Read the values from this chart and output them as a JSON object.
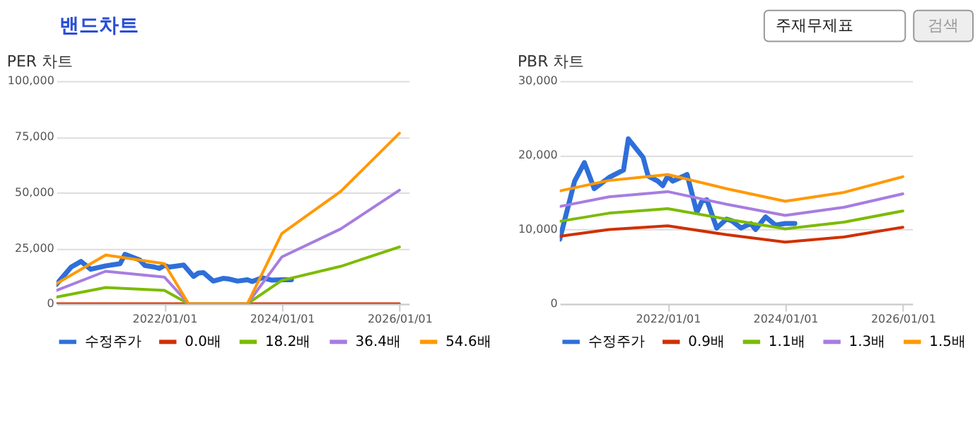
{
  "chart_data": [
    {
      "type": "other",
      "title": "밴드차트",
      "annotations": [
        "주재무제표",
        "검색"
      ]
    },
    {
      "type": "line",
      "title": "PER 차트",
      "legend": "bottom",
      "grid": "y",
      "marker": "none",
      "line_style": "solid",
      "xlim": [
        "2020-03-01",
        "2026-03-01"
      ],
      "xticks": [
        {
          "value": "2022-01-01",
          "label": "2022/01/01"
        },
        {
          "value": "2024-01-01",
          "label": "2024/01/01"
        },
        {
          "value": "2026-01-01",
          "label": "2026/01/01"
        }
      ],
      "ylim": [
        0,
        100000
      ],
      "yticks": [
        0,
        {
          "value": 25000,
          "label": "25,000"
        },
        {
          "value": 50000,
          "label": "50,000"
        },
        {
          "value": 75000,
          "label": "75,000"
        },
        {
          "value": 100000,
          "label": "100,000"
        }
      ],
      "series": [
        {
          "name": "수정주가",
          "color": "#2e6fd9",
          "x": [
            "2020-03-01",
            "2020-06-01",
            "2020-08-01",
            "2020-10-01",
            "2021-01-01",
            "2021-04-01",
            "2021-05-01",
            "2021-08-01",
            "2021-09-01",
            "2021-11-01",
            "2021-12-01",
            "2022-01-01",
            "2022-02-01",
            "2022-05-01",
            "2022-07-01",
            "2022-08-01",
            "2022-09-01",
            "2022-11-01",
            "2023-01-01",
            "2023-02-01",
            "2023-04-01",
            "2023-06-01",
            "2023-07-01",
            "2023-09-01",
            "2023-11-01",
            "2024-01-01",
            "2024-03-01"
          ],
          "values": [
            8700,
            16500,
            19000,
            15500,
            17000,
            18000,
            22200,
            19700,
            17200,
            16500,
            15900,
            17200,
            16500,
            17400,
            12300,
            13800,
            14000,
            10200,
            11400,
            11200,
            10200,
            10800,
            10000,
            11700,
            10600,
            10800,
            10800
          ]
        },
        {
          "name": "0.0배",
          "color": "#d03000",
          "x": [
            "2020-03-01",
            "2021-01-01",
            "2022-01-01",
            "2022-06-01",
            "2023-06-01",
            "2024-01-01",
            "2025-01-01",
            "2026-01-01"
          ],
          "values": [
            0,
            0,
            0,
            0,
            0,
            0,
            0,
            0
          ]
        },
        {
          "name": "18.2배",
          "color": "#7cbb00",
          "x": [
            "2020-03-01",
            "2021-01-01",
            "2022-01-01",
            "2022-06-01",
            "2023-06-01",
            "2024-01-01",
            "2025-01-01",
            "2026-01-01"
          ],
          "values": [
            3000,
            7300,
            6000,
            0,
            0,
            10500,
            16800,
            25500
          ]
        },
        {
          "name": "36.4배",
          "color": "#a77de0",
          "x": [
            "2020-03-01",
            "2021-01-01",
            "2022-01-01",
            "2022-06-01",
            "2023-06-01",
            "2024-01-01",
            "2025-01-01",
            "2026-01-01"
          ],
          "values": [
            6000,
            14600,
            12000,
            0,
            0,
            21000,
            33600,
            51000
          ]
        },
        {
          "name": "54.6배",
          "color": "#ff9900",
          "x": [
            "2020-03-01",
            "2021-01-01",
            "2022-01-01",
            "2022-06-01",
            "2023-06-01",
            "2024-01-01",
            "2025-01-01",
            "2026-01-01"
          ],
          "values": [
            9000,
            21900,
            18000,
            0,
            0,
            31500,
            50400,
            76500
          ]
        }
      ]
    },
    {
      "type": "line",
      "title": "PBR 차트",
      "legend": "bottom",
      "grid": "y",
      "marker": "none",
      "line_style": "solid",
      "xlim": [
        "2020-03-01",
        "2026-03-01"
      ],
      "xticks": [
        {
          "value": "2022-01-01",
          "label": "2022/01/01"
        },
        {
          "value": "2024-01-01",
          "label": "2024/01/01"
        },
        {
          "value": "2026-01-01",
          "label": "2026/01/01"
        }
      ],
      "ylim": [
        0,
        30000
      ],
      "yticks": [
        0,
        {
          "value": 10000,
          "label": "10,000"
        },
        {
          "value": 20000,
          "label": "20,000"
        },
        {
          "value": 30000,
          "label": "30,000"
        }
      ],
      "series": [
        {
          "name": "수정주가",
          "color": "#2e6fd9",
          "x": [
            "2020-03-01",
            "2020-06-01",
            "2020-08-01",
            "2020-10-01",
            "2021-01-01",
            "2021-04-01",
            "2021-05-01",
            "2021-08-01",
            "2021-09-01",
            "2021-11-01",
            "2021-12-01",
            "2022-01-01",
            "2022-02-01",
            "2022-05-01",
            "2022-07-01",
            "2022-08-01",
            "2022-09-01",
            "2022-11-01",
            "2023-01-01",
            "2023-02-01",
            "2023-04-01",
            "2023-06-01",
            "2023-07-01",
            "2023-09-01",
            "2023-11-01",
            "2024-01-01",
            "2024-03-01"
          ],
          "values": [
            8700,
            16500,
            19000,
            15500,
            17000,
            18000,
            22200,
            19700,
            17200,
            16500,
            15900,
            17200,
            16500,
            17400,
            12300,
            13800,
            14000,
            10200,
            11400,
            11200,
            10200,
            10800,
            10000,
            11700,
            10600,
            10800,
            10800
          ]
        },
        {
          "name": "0.9배",
          "color": "#d03000",
          "x": [
            "2020-03-01",
            "2021-01-01",
            "2022-01-01",
            "2023-01-01",
            "2024-01-01",
            "2025-01-01",
            "2026-01-01"
          ],
          "values": [
            9100,
            10000,
            10500,
            9300,
            8300,
            9000,
            10300
          ]
        },
        {
          "name": "1.1배",
          "color": "#7cbb00",
          "x": [
            "2020-03-01",
            "2021-01-01",
            "2022-01-01",
            "2023-01-01",
            "2024-01-01",
            "2025-01-01",
            "2026-01-01"
          ],
          "values": [
            11100,
            12200,
            12800,
            11400,
            10100,
            11000,
            12500
          ]
        },
        {
          "name": "1.3배",
          "color": "#a77de0",
          "x": [
            "2020-03-01",
            "2021-01-01",
            "2022-01-01",
            "2023-01-01",
            "2024-01-01",
            "2025-01-01",
            "2026-01-01"
          ],
          "values": [
            13100,
            14400,
            15100,
            13400,
            11900,
            13000,
            14800
          ]
        },
        {
          "name": "1.5배",
          "color": "#ff9900",
          "x": [
            "2020-03-01",
            "2021-01-01",
            "2022-01-01",
            "2023-01-01",
            "2024-01-01",
            "2025-01-01",
            "2026-01-01"
          ],
          "values": [
            15200,
            16600,
            17400,
            15500,
            13800,
            15000,
            17100
          ]
        }
      ]
    }
  ]
}
